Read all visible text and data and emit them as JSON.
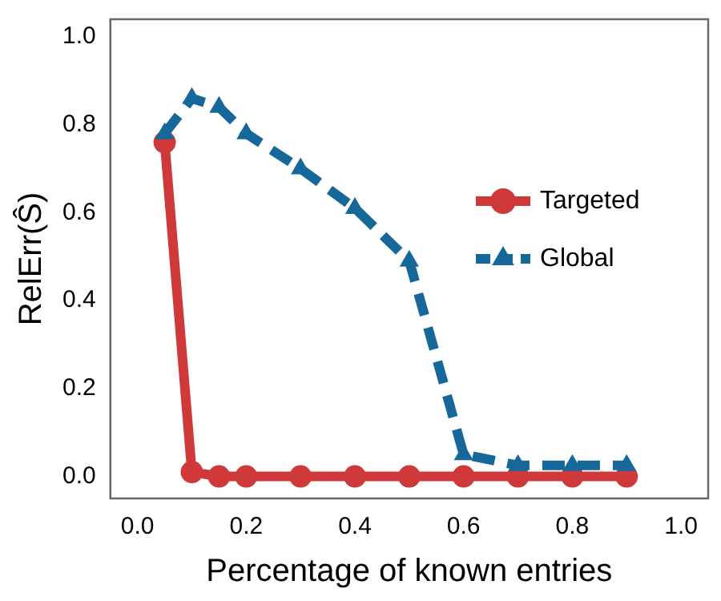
{
  "chart_data": {
    "type": "line",
    "xlabel": "Percentage of known entries",
    "ylabel": "RelErr(Ŝ)",
    "x": [
      0.05,
      0.1,
      0.15,
      0.2,
      0.3,
      0.4,
      0.5,
      0.6,
      0.7,
      0.8,
      0.9
    ],
    "series": [
      {
        "name": "Targeted",
        "color": "#d0393a",
        "marker": "circle",
        "line_style": "solid",
        "values": [
          0.76,
          0.01,
          0,
          0,
          0,
          0,
          0,
          0,
          0,
          0,
          0
        ]
      },
      {
        "name": "Global",
        "color": "#16689a",
        "marker": "triangle",
        "line_style": "dashed",
        "values": [
          0.78,
          0.86,
          0.84,
          0.78,
          0.7,
          0.61,
          0.49,
          0.05,
          0.025,
          0.025,
          0.025
        ]
      }
    ],
    "xlim": [
      -0.05,
      1.05
    ],
    "ylim": [
      -0.05,
      1.04
    ],
    "xticks": [
      {
        "value": 0,
        "label": "0.0"
      },
      {
        "value": 0.2,
        "label": "0.2"
      },
      {
        "value": 0.4,
        "label": "0.4"
      },
      {
        "value": 0.6,
        "label": "0.6"
      },
      {
        "value": 0.8,
        "label": "0.8"
      },
      {
        "value": 1,
        "label": "1.0"
      }
    ],
    "yticks": [
      {
        "value": 0,
        "label": "0.0"
      },
      {
        "value": 0.2,
        "label": "0.2"
      },
      {
        "value": 0.4,
        "label": "0.4"
      },
      {
        "value": 0.6,
        "label": "0.6"
      },
      {
        "value": 0.8,
        "label": "0.8"
      },
      {
        "value": 1,
        "label": "1.0"
      }
    ],
    "grid": false,
    "legend": "center right"
  }
}
